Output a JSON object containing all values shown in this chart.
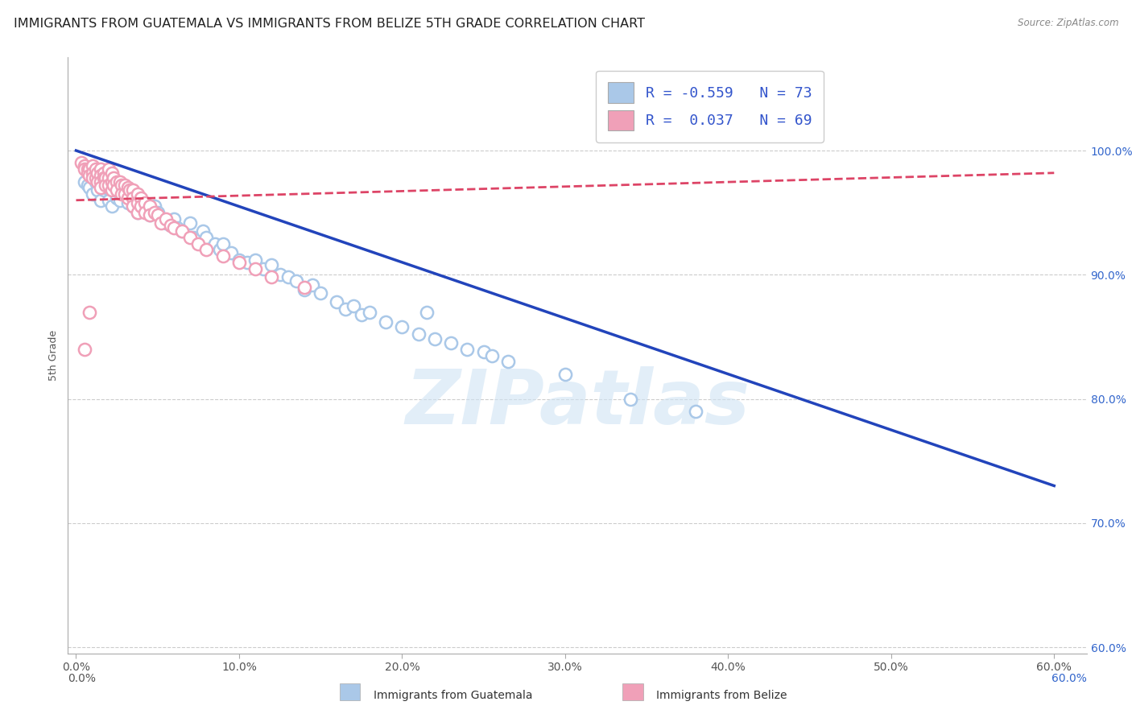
{
  "title": "IMMIGRANTS FROM GUATEMALA VS IMMIGRANTS FROM BELIZE 5TH GRADE CORRELATION CHART",
  "source": "Source: ZipAtlas.com",
  "ylabel": "5th Grade",
  "x_tick_labels": [
    "0.0%",
    "10.0%",
    "20.0%",
    "30.0%",
    "40.0%",
    "50.0%",
    "60.0%"
  ],
  "x_tick_vals": [
    0.0,
    0.1,
    0.2,
    0.3,
    0.4,
    0.5,
    0.6
  ],
  "y_tick_labels": [
    "100.0%",
    "90.0%",
    "80.0%",
    "70.0%",
    "60.0%"
  ],
  "y_tick_vals": [
    1.0,
    0.9,
    0.8,
    0.7,
    0.6
  ],
  "xlim": [
    -0.005,
    0.62
  ],
  "ylim": [
    0.595,
    1.075
  ],
  "legend_label_blue": "R = -0.559   N = 73",
  "legend_label_pink": "R =  0.037   N = 69",
  "legend_label_color": "#3355cc",
  "watermark": "ZIPatlas",
  "background_color": "#ffffff",
  "grid_color": "#cccccc",
  "scatter_blue_color": "#aac8e8",
  "scatter_pink_color": "#f0a0b8",
  "line_blue_color": "#2244bb",
  "line_pink_color": "#dd4466",
  "title_fontsize": 11.5,
  "axis_label_fontsize": 9,
  "tick_fontsize": 10,
  "blue_line_x": [
    0.0,
    0.6
  ],
  "blue_line_y": [
    1.0,
    0.73
  ],
  "pink_line_x": [
    0.0,
    0.6
  ],
  "pink_line_y": [
    0.96,
    0.982
  ],
  "blue_scatter_x": [
    0.005,
    0.007,
    0.008,
    0.01,
    0.01,
    0.012,
    0.013,
    0.015,
    0.015,
    0.017,
    0.018,
    0.02,
    0.02,
    0.022,
    0.022,
    0.025,
    0.025,
    0.027,
    0.028,
    0.03,
    0.032,
    0.035,
    0.035,
    0.038,
    0.04,
    0.042,
    0.045,
    0.048,
    0.05,
    0.052,
    0.055,
    0.058,
    0.06,
    0.062,
    0.065,
    0.07,
    0.072,
    0.075,
    0.078,
    0.08,
    0.085,
    0.088,
    0.09,
    0.095,
    0.1,
    0.105,
    0.11,
    0.115,
    0.12,
    0.125,
    0.13,
    0.135,
    0.14,
    0.145,
    0.15,
    0.16,
    0.165,
    0.17,
    0.175,
    0.18,
    0.19,
    0.2,
    0.21,
    0.215,
    0.22,
    0.23,
    0.24,
    0.25,
    0.255,
    0.265,
    0.3,
    0.34,
    0.38
  ],
  "blue_scatter_y": [
    0.975,
    0.972,
    0.97,
    0.985,
    0.965,
    0.975,
    0.968,
    0.972,
    0.96,
    0.968,
    0.97,
    0.975,
    0.96,
    0.968,
    0.955,
    0.968,
    0.962,
    0.96,
    0.972,
    0.965,
    0.958,
    0.96,
    0.955,
    0.95,
    0.96,
    0.952,
    0.948,
    0.955,
    0.95,
    0.945,
    0.942,
    0.94,
    0.945,
    0.938,
    0.935,
    0.942,
    0.93,
    0.928,
    0.935,
    0.93,
    0.925,
    0.92,
    0.925,
    0.918,
    0.912,
    0.91,
    0.912,
    0.905,
    0.908,
    0.9,
    0.898,
    0.895,
    0.888,
    0.892,
    0.885,
    0.878,
    0.872,
    0.875,
    0.868,
    0.87,
    0.862,
    0.858,
    0.852,
    0.87,
    0.848,
    0.845,
    0.84,
    0.838,
    0.835,
    0.83,
    0.82,
    0.8,
    0.79
  ],
  "pink_scatter_x": [
    0.003,
    0.005,
    0.005,
    0.007,
    0.007,
    0.008,
    0.008,
    0.01,
    0.01,
    0.01,
    0.012,
    0.012,
    0.013,
    0.013,
    0.015,
    0.015,
    0.015,
    0.015,
    0.017,
    0.017,
    0.018,
    0.018,
    0.02,
    0.02,
    0.02,
    0.022,
    0.022,
    0.022,
    0.023,
    0.023,
    0.025,
    0.025,
    0.027,
    0.028,
    0.028,
    0.03,
    0.03,
    0.032,
    0.032,
    0.033,
    0.035,
    0.035,
    0.035,
    0.038,
    0.038,
    0.038,
    0.04,
    0.04,
    0.042,
    0.042,
    0.045,
    0.045,
    0.048,
    0.05,
    0.052,
    0.055,
    0.058,
    0.06,
    0.065,
    0.07,
    0.075,
    0.08,
    0.09,
    0.1,
    0.11,
    0.12,
    0.14,
    0.005,
    0.008
  ],
  "pink_scatter_y": [
    0.99,
    0.988,
    0.985,
    0.985,
    0.982,
    0.985,
    0.98,
    0.988,
    0.982,
    0.978,
    0.985,
    0.978,
    0.982,
    0.975,
    0.985,
    0.98,
    0.975,
    0.97,
    0.982,
    0.978,
    0.978,
    0.972,
    0.985,
    0.978,
    0.972,
    0.982,
    0.975,
    0.968,
    0.978,
    0.972,
    0.975,
    0.968,
    0.975,
    0.972,
    0.965,
    0.972,
    0.965,
    0.97,
    0.962,
    0.968,
    0.968,
    0.962,
    0.955,
    0.965,
    0.958,
    0.95,
    0.962,
    0.955,
    0.958,
    0.95,
    0.955,
    0.948,
    0.95,
    0.948,
    0.942,
    0.945,
    0.94,
    0.938,
    0.935,
    0.93,
    0.925,
    0.92,
    0.915,
    0.91,
    0.905,
    0.898,
    0.89,
    0.84,
    0.87
  ],
  "bottom_legend": [
    {
      "label": "Immigrants from Guatemala",
      "color": "#aac8e8"
    },
    {
      "label": "Immigrants from Belize",
      "color": "#f0a0b8"
    }
  ]
}
